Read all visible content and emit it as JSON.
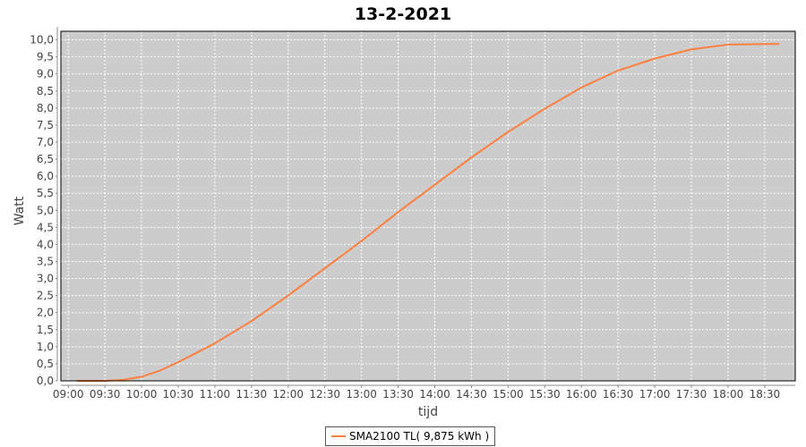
{
  "chart_data": {
    "type": "line",
    "title": "13-2-2021",
    "xlabel": "tijd",
    "ylabel": "Watt",
    "ylim": [
      0,
      10.25
    ],
    "xlim": [
      "08:54",
      "18:55"
    ],
    "grid": true,
    "legend_position": "bottom",
    "x_ticks": [
      "09:00",
      "09:30",
      "10:00",
      "10:30",
      "11:00",
      "11:30",
      "12:00",
      "12:30",
      "13:00",
      "13:30",
      "14:00",
      "14:30",
      "15:00",
      "15:30",
      "16:00",
      "16:30",
      "17:00",
      "17:30",
      "18:00",
      "18:30"
    ],
    "y_ticks": [
      "0,0",
      "0,5",
      "1,0",
      "1,5",
      "2,0",
      "2,5",
      "3,0",
      "3,5",
      "4,0",
      "4,5",
      "5,0",
      "5,5",
      "6,0",
      "6,5",
      "7,0",
      "7,5",
      "8,0",
      "8,5",
      "9,0",
      "9,5",
      "10,0"
    ],
    "series": [
      {
        "name": "SMA2100 TL( 9,875 kWh )",
        "color": "#ff7f3f",
        "x": [
          "09:07",
          "09:30",
          "09:45",
          "10:00",
          "10:15",
          "10:30",
          "10:45",
          "11:00",
          "11:30",
          "12:00",
          "12:30",
          "13:00",
          "13:30",
          "14:00",
          "14:30",
          "15:00",
          "15:30",
          "16:00",
          "16:30",
          "17:00",
          "17:30",
          "18:00",
          "18:30",
          "18:42"
        ],
        "y": [
          0,
          0,
          0.03,
          0.12,
          0.3,
          0.55,
          0.82,
          1.1,
          1.75,
          2.5,
          3.3,
          4.1,
          4.95,
          5.75,
          6.55,
          7.3,
          7.98,
          8.6,
          9.1,
          9.45,
          9.72,
          9.86,
          9.875,
          9.875
        ]
      }
    ]
  },
  "background_color": "#cccccc"
}
